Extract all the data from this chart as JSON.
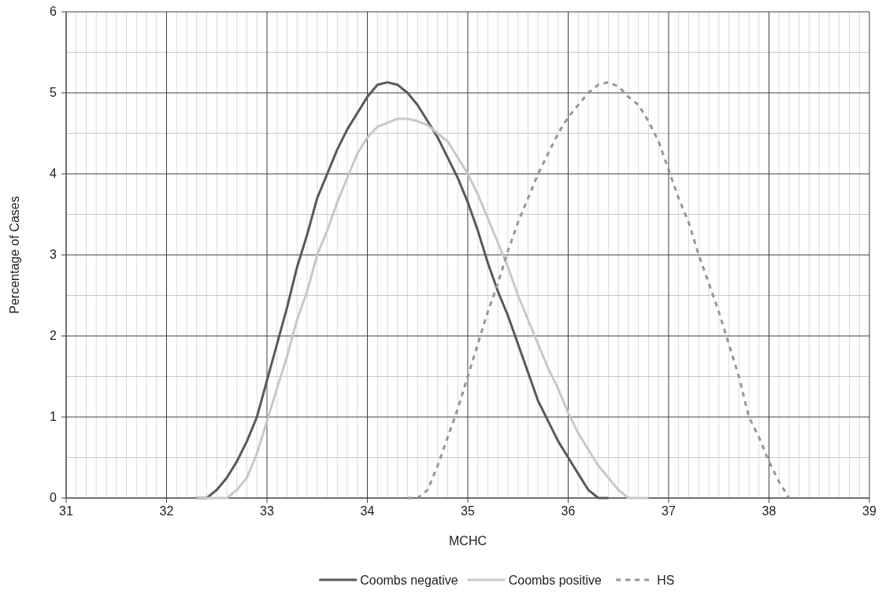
{
  "chart_data": {
    "type": "line",
    "xlabel": "MCHC",
    "ylabel": "Percentage of Cases",
    "xlim": [
      31,
      39
    ],
    "ylim": [
      0,
      6
    ],
    "xticks": [
      31,
      32,
      33,
      34,
      35,
      36,
      37,
      38,
      39
    ],
    "yticks": [
      0,
      1,
      2,
      3,
      4,
      5,
      6
    ],
    "grid": true,
    "legend": "bottom",
    "marker": "none",
    "series": [
      {
        "name": "Coombs negative",
        "color": "#595959",
        "line_style": "solid",
        "x": [
          32.3,
          32.4,
          32.5,
          32.6,
          32.7,
          32.8,
          32.9,
          33.0,
          33.1,
          33.2,
          33.3,
          33.4,
          33.5,
          33.6,
          33.7,
          33.8,
          33.9,
          34.0,
          34.1,
          34.2,
          34.3,
          34.4,
          34.5,
          34.6,
          34.7,
          34.8,
          34.9,
          35.0,
          35.1,
          35.2,
          35.3,
          35.4,
          35.5,
          35.6,
          35.7,
          35.8,
          35.9,
          36.0,
          36.1,
          36.2,
          36.3,
          36.4
        ],
        "values": [
          0,
          0,
          0.1,
          0.25,
          0.45,
          0.7,
          1.0,
          1.45,
          1.9,
          2.35,
          2.85,
          3.25,
          3.7,
          4.0,
          4.3,
          4.55,
          4.75,
          4.95,
          5.1,
          5.13,
          5.1,
          5.0,
          4.85,
          4.65,
          4.45,
          4.2,
          3.95,
          3.65,
          3.3,
          2.9,
          2.55,
          2.25,
          1.9,
          1.55,
          1.2,
          0.95,
          0.7,
          0.5,
          0.3,
          0.1,
          0,
          0
        ]
      },
      {
        "name": "Coombs positive",
        "color": "#c8c8c8",
        "line_style": "solid",
        "x": [
          32.3,
          32.4,
          32.5,
          32.6,
          32.7,
          32.8,
          32.9,
          33.0,
          33.1,
          33.2,
          33.3,
          33.4,
          33.5,
          33.6,
          33.7,
          33.8,
          33.9,
          34.0,
          34.1,
          34.2,
          34.3,
          34.4,
          34.5,
          34.6,
          34.7,
          34.8,
          34.9,
          35.0,
          35.1,
          35.2,
          35.3,
          35.4,
          35.5,
          35.6,
          35.7,
          35.8,
          35.9,
          36.0,
          36.1,
          36.2,
          36.3,
          36.4,
          36.5,
          36.6,
          36.7,
          36.8
        ],
        "values": [
          0,
          0,
          0,
          0,
          0.1,
          0.25,
          0.55,
          0.95,
          1.35,
          1.75,
          2.2,
          2.55,
          3.0,
          3.3,
          3.65,
          3.95,
          4.25,
          4.45,
          4.58,
          4.63,
          4.68,
          4.68,
          4.65,
          4.6,
          4.5,
          4.4,
          4.2,
          4.0,
          3.75,
          3.45,
          3.15,
          2.85,
          2.5,
          2.2,
          1.9,
          1.6,
          1.35,
          1.05,
          0.8,
          0.6,
          0.4,
          0.25,
          0.1,
          0,
          0,
          0
        ]
      },
      {
        "name": "HS",
        "color": "#969696",
        "line_style": "dashed",
        "x": [
          34.4,
          34.5,
          34.6,
          34.7,
          34.8,
          34.9,
          35.0,
          35.1,
          35.2,
          35.3,
          35.4,
          35.5,
          35.6,
          35.7,
          35.8,
          35.9,
          36.0,
          36.1,
          36.2,
          36.3,
          36.4,
          36.5,
          36.6,
          36.7,
          36.8,
          36.9,
          37.0,
          37.1,
          37.2,
          37.3,
          37.4,
          37.5,
          37.6,
          37.7,
          37.8,
          37.9,
          38.0,
          38.1,
          38.2
        ],
        "values": [
          0,
          0,
          0.1,
          0.4,
          0.75,
          1.1,
          1.5,
          1.9,
          2.3,
          2.65,
          3.05,
          3.4,
          3.7,
          4.0,
          4.25,
          4.5,
          4.7,
          4.85,
          5.0,
          5.1,
          5.13,
          5.08,
          4.95,
          4.85,
          4.65,
          4.4,
          4.05,
          3.7,
          3.4,
          3.0,
          2.65,
          2.3,
          1.9,
          1.5,
          1.0,
          0.75,
          0.45,
          0.2,
          0
        ]
      }
    ]
  }
}
